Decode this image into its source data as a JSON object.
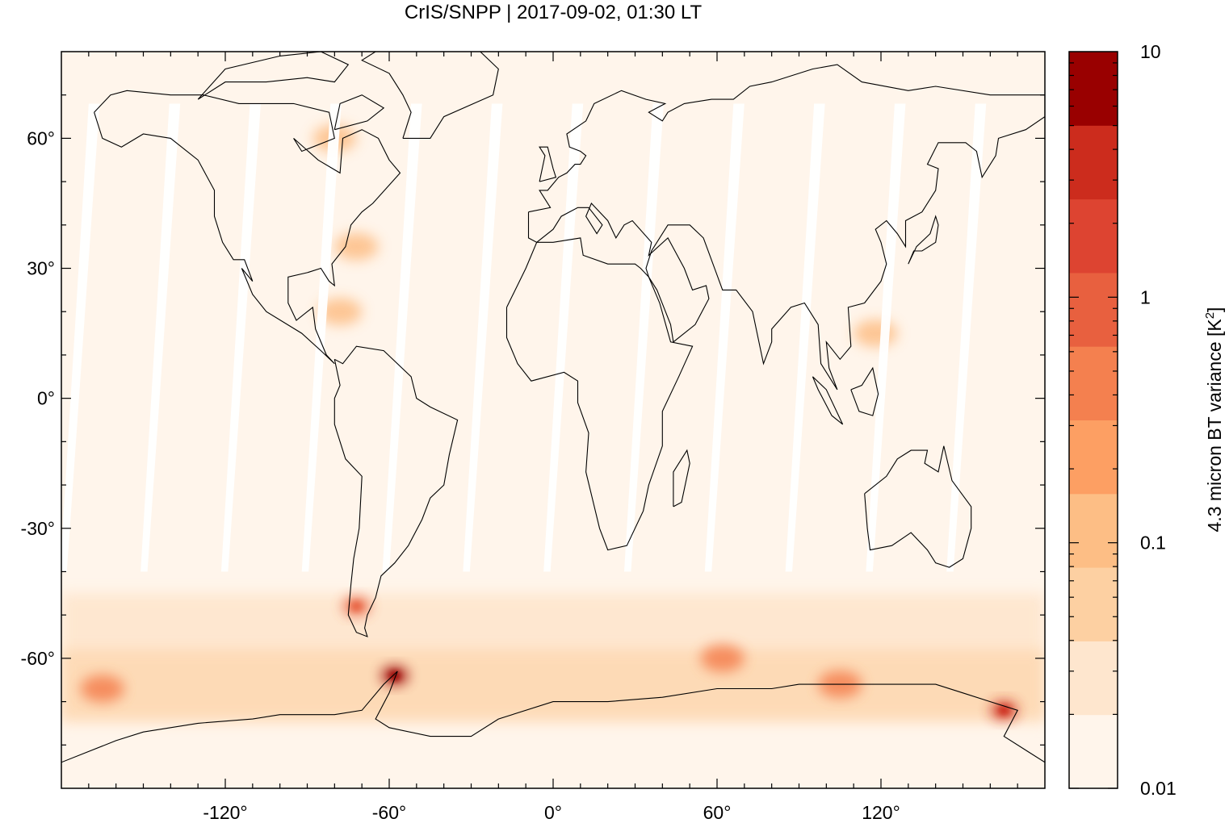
{
  "chart_data": {
    "type": "heatmap",
    "title": "CrIS/SNPP | 2017-09-02, 01:30 LT",
    "projection": "equirectangular",
    "xlim": [
      -180,
      180
    ],
    "ylim": [
      -90,
      80
    ],
    "x_ticks": [
      {
        "value": -120,
        "label": "-120°"
      },
      {
        "value": -60,
        "label": "-60°"
      },
      {
        "value": 0,
        "label": "0°"
      },
      {
        "value": 60,
        "label": "60°"
      },
      {
        "value": 120,
        "label": "120°"
      }
    ],
    "y_ticks": [
      {
        "value": 60,
        "label": "60°"
      },
      {
        "value": 30,
        "label": "30°"
      },
      {
        "value": 0,
        "label": "0°"
      },
      {
        "value": -30,
        "label": "-30°"
      },
      {
        "value": -60,
        "label": "-60°"
      }
    ],
    "colorbar": {
      "label_main": "4.3 micron BT variance [K",
      "label_sup": "2",
      "label_end": "]",
      "scale": "log",
      "range": [
        0.01,
        10
      ],
      "tick_labels": [
        {
          "value": 10,
          "label": "10"
        },
        {
          "value": 1,
          "label": "1"
        },
        {
          "value": 0.1,
          "label": "0.1"
        },
        {
          "value": 0.01,
          "label": "0.01"
        }
      ],
      "colors": [
        "#fff5eb",
        "#fee6ce",
        "#fdd0a2",
        "#fdbe85",
        "#fd9f63",
        "#f4804f",
        "#e8603f",
        "#dd4431",
        "#cc2c1d",
        "#990000"
      ]
    },
    "background_value_level": "0.01-0.02",
    "regions": [
      {
        "name": "southern-ocean-band",
        "lon": [
          -180,
          180
        ],
        "lat": [
          -75,
          -45
        ],
        "level": "0.02-0.1"
      },
      {
        "name": "patagonia",
        "lon": -72,
        "lat": -48,
        "level": "0.3-1"
      },
      {
        "name": "antarctic-peninsula",
        "lon": -58,
        "lat": -64,
        "level": "5-10"
      },
      {
        "name": "pacific-sector-south",
        "lon": -165,
        "lat": -67,
        "level": "0.2-0.6"
      },
      {
        "name": "indian-ocean-sector",
        "lon": 62,
        "lat": -60,
        "level": "0.2-0.5"
      },
      {
        "name": "east-antarctica-coast",
        "lon": 105,
        "lat": -66,
        "level": "0.2-0.5"
      },
      {
        "name": "ross-sea",
        "lon": 165,
        "lat": -72,
        "level": "1-3"
      },
      {
        "name": "us-east-coast",
        "lon": -72,
        "lat": 35,
        "level": "0.05-0.1"
      },
      {
        "name": "caribbean",
        "lon": -78,
        "lat": 20,
        "level": "0.05-0.1"
      },
      {
        "name": "hudson-bay",
        "lon": -80,
        "lat": 60,
        "level": "0.05-0.1"
      },
      {
        "name": "south-china-sea",
        "lon": 118,
        "lat": 15,
        "level": "0.05-0.1"
      }
    ],
    "data_gaps": "diagonal orbit swath gaps in the tropics and mid-latitudes"
  }
}
